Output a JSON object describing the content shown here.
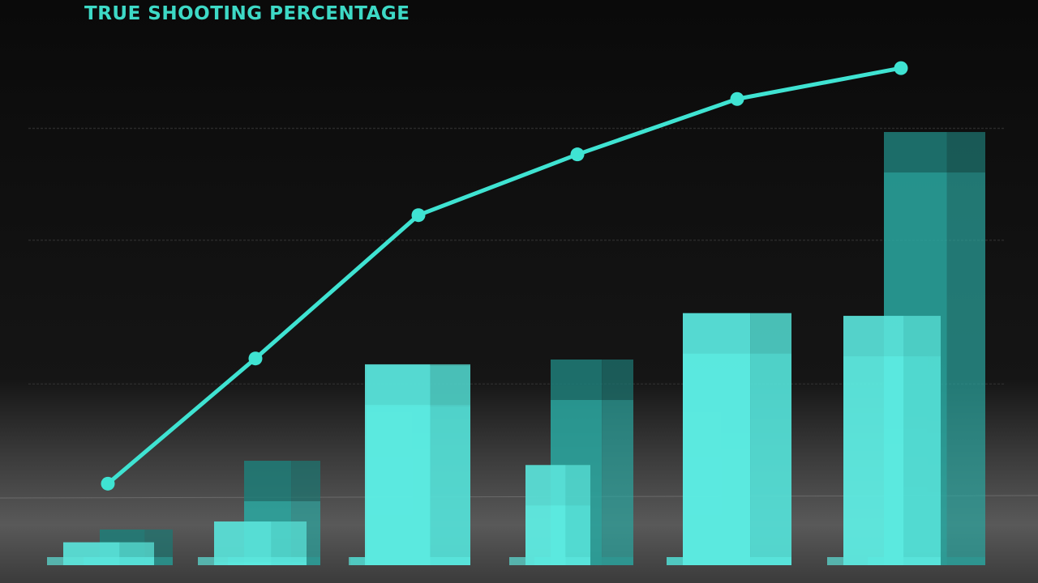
{
  "chart_data": {
    "type": "combo",
    "title": "TRUE SHOOTING PERCENTAGE",
    "ylim": [
      0,
      100
    ],
    "gridlines": [
      34,
      61,
      82
    ],
    "line": {
      "color": "#3fe3d2",
      "values": [
        15.3,
        38.8,
        65.7,
        77.1,
        87.5,
        93.3
      ]
    },
    "bars": [
      {
        "color": "#2aa9a2",
        "values": [
          6.7,
          19.6,
          37.4,
          38.6,
          47.3,
          81.3
        ]
      },
      {
        "color": "#5ff0e6",
        "values": [
          4.3,
          8.2,
          37.7,
          18.8,
          47.3,
          46.8
        ]
      }
    ]
  }
}
